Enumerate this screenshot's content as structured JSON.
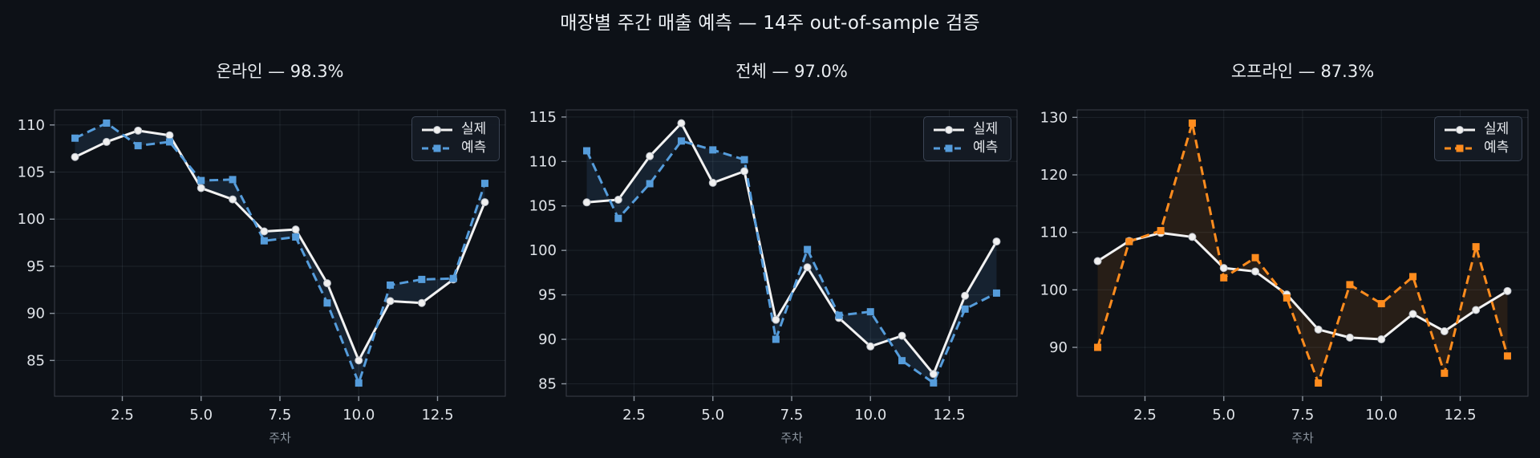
{
  "figure": {
    "suptitle": "매장별 주간 매출 예측 — 14주 out-of-sample 검증",
    "background": "#0d1117",
    "text_color": "#e9edf1",
    "muted_color": "#8b949e"
  },
  "legend": {
    "actual_label": "실제",
    "forecast_label": "예측"
  },
  "chart_data": [
    {
      "type": "line",
      "title": "온라인 — 98.3%",
      "xlabel": "주차",
      "x": [
        1,
        2,
        3,
        4,
        5,
        6,
        7,
        8,
        9,
        10,
        11,
        12,
        13,
        14
      ],
      "xticks": [
        2.5,
        5.0,
        7.5,
        10.0,
        12.5
      ],
      "xtick_labels": [
        "2.5",
        "5.0",
        "7.5",
        "10.0",
        "12.5"
      ],
      "yticks": [
        85,
        90,
        95,
        100,
        105,
        110
      ],
      "ytick_labels": [
        "85",
        "90",
        "95",
        "100",
        "105",
        "110"
      ],
      "xlim": [
        0.35,
        14.65
      ],
      "ylim": [
        81.2,
        111.6
      ],
      "grid": true,
      "legend_position": "upper right",
      "series": [
        {
          "name": "실제",
          "role": "actual",
          "color": "#f2f2f2",
          "style": "solid",
          "marker": "circle",
          "values": [
            106.6,
            108.2,
            109.4,
            108.9,
            103.3,
            102.1,
            98.7,
            98.9,
            93.2,
            85.0,
            91.3,
            91.1,
            93.6,
            101.8
          ]
        },
        {
          "name": "예측",
          "role": "forecast",
          "color": "#559cdb",
          "style": "dashed",
          "marker": "square",
          "values": [
            108.6,
            110.2,
            107.8,
            108.2,
            104.1,
            104.2,
            97.7,
            98.1,
            91.1,
            82.6,
            93.0,
            93.6,
            93.7,
            103.8
          ]
        }
      ],
      "fill_between": {
        "color": "#559cdb",
        "alpha": 0.13
      }
    },
    {
      "type": "line",
      "title": "전체 — 97.0%",
      "xlabel": "주차",
      "x": [
        1,
        2,
        3,
        4,
        5,
        6,
        7,
        8,
        9,
        10,
        11,
        12,
        13,
        14
      ],
      "xticks": [
        2.5,
        5.0,
        7.5,
        10.0,
        12.5
      ],
      "xtick_labels": [
        "2.5",
        "5.0",
        "7.5",
        "10.0",
        "12.5"
      ],
      "yticks": [
        85,
        90,
        95,
        100,
        105,
        110,
        115
      ],
      "ytick_labels": [
        "85",
        "90",
        "95",
        "100",
        "105",
        "110",
        "115"
      ],
      "xlim": [
        0.35,
        14.65
      ],
      "ylim": [
        83.6,
        115.8
      ],
      "grid": true,
      "legend_position": "upper right",
      "series": [
        {
          "name": "실제",
          "role": "actual",
          "color": "#f2f2f2",
          "style": "solid",
          "marker": "circle",
          "values": [
            105.4,
            105.7,
            110.6,
            114.3,
            107.6,
            108.9,
            92.2,
            98.1,
            92.4,
            89.2,
            90.4,
            86.1,
            94.9,
            101.0
          ]
        },
        {
          "name": "예측",
          "role": "forecast",
          "color": "#559cdb",
          "style": "dashed",
          "marker": "square",
          "values": [
            111.2,
            103.6,
            107.5,
            112.3,
            111.3,
            110.2,
            90.0,
            100.1,
            92.7,
            93.1,
            87.6,
            85.1,
            93.4,
            95.2
          ]
        }
      ],
      "fill_between": {
        "color": "#559cdb",
        "alpha": 0.13
      }
    },
    {
      "type": "line",
      "title": "오프라인 — 87.3%",
      "xlabel": "주차",
      "x": [
        1,
        2,
        3,
        4,
        5,
        6,
        7,
        8,
        9,
        10,
        11,
        12,
        13,
        14
      ],
      "xticks": [
        2.5,
        5.0,
        7.5,
        10.0,
        12.5
      ],
      "xtick_labels": [
        "2.5",
        "5.0",
        "7.5",
        "10.0",
        "12.5"
      ],
      "yticks": [
        90,
        100,
        110,
        120,
        130
      ],
      "ytick_labels": [
        "90",
        "100",
        "110",
        "120",
        "130"
      ],
      "xlim": [
        0.35,
        14.65
      ],
      "ylim": [
        81.5,
        131.3
      ],
      "grid": true,
      "legend_position": "upper right",
      "series": [
        {
          "name": "실제",
          "role": "actual",
          "color": "#f2f2f2",
          "style": "solid",
          "marker": "circle",
          "values": [
            105.0,
            108.5,
            109.9,
            109.2,
            103.8,
            103.2,
            99.2,
            93.1,
            91.7,
            91.4,
            95.8,
            92.8,
            96.5,
            99.8
          ]
        },
        {
          "name": "예측",
          "role": "forecast",
          "color": "#ff8c1e",
          "style": "dashed",
          "marker": "square",
          "values": [
            90.0,
            108.4,
            110.3,
            129.0,
            102.1,
            105.6,
            98.6,
            83.8,
            100.9,
            97.6,
            102.3,
            85.5,
            107.5,
            88.5
          ]
        }
      ],
      "fill_between": {
        "color": "#ff8c1e",
        "alpha": 0.11
      }
    }
  ]
}
